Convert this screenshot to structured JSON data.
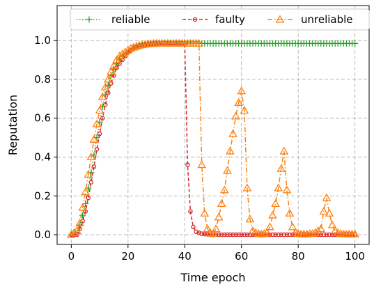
{
  "chart_data": {
    "type": "line",
    "xlabel": "Time epoch",
    "ylabel": "Reputation",
    "xlim": [
      -5,
      105
    ],
    "ylim": [
      -0.05,
      1.18
    ],
    "xticks": [
      0,
      20,
      40,
      60,
      80,
      100
    ],
    "yticks": [
      0.0,
      0.2,
      0.4,
      0.6,
      0.8,
      1.0
    ],
    "xtick_labels": [
      "0",
      "20",
      "40",
      "60",
      "80",
      "100"
    ],
    "ytick_labels": [
      "0.0",
      "0.2",
      "0.4",
      "0.6",
      "0.8",
      "1.0"
    ],
    "grid": true,
    "legend_position": "top",
    "series": [
      {
        "name": "reliable",
        "color": "#2ca02c",
        "linestyle": "dotted",
        "marker": "plus",
        "x": [
          0,
          1,
          2,
          3,
          4,
          5,
          6,
          7,
          8,
          9,
          10,
          11,
          12,
          13,
          14,
          15,
          16,
          17,
          18,
          19,
          20,
          21,
          22,
          23,
          24,
          25,
          26,
          27,
          28,
          29,
          30,
          31,
          32,
          33,
          34,
          35,
          36,
          37,
          38,
          39,
          40,
          41,
          42,
          43,
          44,
          45,
          46,
          47,
          48,
          49,
          50,
          51,
          52,
          53,
          54,
          55,
          56,
          57,
          58,
          59,
          60,
          61,
          62,
          63,
          64,
          65,
          66,
          67,
          68,
          69,
          70,
          71,
          72,
          73,
          74,
          75,
          76,
          77,
          78,
          79,
          80,
          81,
          82,
          83,
          84,
          85,
          86,
          87,
          88,
          89,
          90,
          91,
          92,
          93,
          94,
          95,
          96,
          97,
          98,
          99,
          100
        ],
        "y": [
          0.0,
          0.01,
          0.01,
          0.05,
          0.1,
          0.16,
          0.24,
          0.32,
          0.41,
          0.5,
          0.58,
          0.66,
          0.72,
          0.77,
          0.82,
          0.85,
          0.88,
          0.9,
          0.92,
          0.93,
          0.94,
          0.95,
          0.96,
          0.965,
          0.97,
          0.975,
          0.977,
          0.98,
          0.982,
          0.983,
          0.984,
          0.985,
          0.985,
          0.985,
          0.985,
          0.985,
          0.985,
          0.985,
          0.985,
          0.985,
          0.985,
          0.985,
          0.985,
          0.985,
          0.985,
          0.985,
          0.985,
          0.985,
          0.985,
          0.985,
          0.985,
          0.985,
          0.985,
          0.985,
          0.985,
          0.985,
          0.985,
          0.985,
          0.985,
          0.985,
          0.985,
          0.985,
          0.985,
          0.985,
          0.985,
          0.985,
          0.985,
          0.985,
          0.985,
          0.985,
          0.985,
          0.985,
          0.985,
          0.985,
          0.985,
          0.985,
          0.985,
          0.985,
          0.985,
          0.985,
          0.985,
          0.985,
          0.985,
          0.985,
          0.985,
          0.985,
          0.985,
          0.985,
          0.985,
          0.985,
          0.985,
          0.985,
          0.985,
          0.985,
          0.985,
          0.985,
          0.985,
          0.985,
          0.985,
          0.985,
          0.985
        ]
      },
      {
        "name": "faulty",
        "color": "#d62728",
        "linestyle": "dashed",
        "marker": "circle",
        "x": [
          0,
          1,
          2,
          3,
          4,
          5,
          6,
          7,
          8,
          9,
          10,
          11,
          12,
          13,
          14,
          15,
          16,
          17,
          18,
          19,
          20,
          21,
          22,
          23,
          24,
          25,
          26,
          27,
          28,
          29,
          30,
          31,
          32,
          33,
          34,
          35,
          36,
          37,
          38,
          39,
          40,
          41,
          42,
          43,
          44,
          45,
          46,
          47,
          48,
          49,
          50,
          51,
          52,
          53,
          54,
          55,
          56,
          57,
          58,
          59,
          60,
          61,
          62,
          63,
          64,
          65,
          66,
          67,
          68,
          69,
          70,
          71,
          72,
          73,
          74,
          75,
          76,
          77,
          78,
          79,
          80,
          81,
          82,
          83,
          84,
          85,
          86,
          87,
          88,
          89,
          90,
          91,
          92,
          93,
          94,
          95,
          96,
          97,
          98,
          99,
          100
        ],
        "y": [
          0.0,
          0.0,
          0.0,
          0.03,
          0.07,
          0.12,
          0.19,
          0.27,
          0.35,
          0.44,
          0.52,
          0.6,
          0.67,
          0.73,
          0.78,
          0.82,
          0.86,
          0.88,
          0.9,
          0.92,
          0.94,
          0.95,
          0.96,
          0.965,
          0.97,
          0.975,
          0.977,
          0.98,
          0.982,
          0.983,
          0.984,
          0.985,
          0.985,
          0.985,
          0.985,
          0.985,
          0.985,
          0.985,
          0.985,
          0.985,
          0.985,
          0.36,
          0.12,
          0.04,
          0.015,
          0.01,
          0.005,
          0.003,
          0.002,
          0.0,
          0.0,
          0.0,
          0.0,
          0.0,
          0.0,
          0.0,
          0.0,
          0.0,
          0.0,
          0.0,
          0.0,
          0.0,
          0.0,
          0.0,
          0.0,
          0.0,
          0.0,
          0.0,
          0.0,
          0.0,
          0.0,
          0.0,
          0.0,
          0.0,
          0.0,
          0.0,
          0.0,
          0.0,
          0.0,
          0.0,
          0.0,
          0.0,
          0.0,
          0.0,
          0.0,
          0.0,
          0.0,
          0.0,
          0.0,
          0.0,
          0.0,
          0.0,
          0.0,
          0.0,
          0.0,
          0.0,
          0.0,
          0.0,
          0.0,
          0.0,
          0.0
        ]
      },
      {
        "name": "unreliable",
        "color": "#ff7f0e",
        "linestyle": "dashdot",
        "marker": "triangle",
        "x": [
          0,
          1,
          2,
          3,
          4,
          5,
          6,
          7,
          8,
          9,
          10,
          11,
          12,
          13,
          14,
          15,
          16,
          17,
          18,
          19,
          20,
          21,
          22,
          23,
          24,
          25,
          26,
          27,
          28,
          29,
          30,
          31,
          32,
          33,
          34,
          35,
          36,
          37,
          38,
          39,
          40,
          41,
          42,
          43,
          44,
          45,
          46,
          47,
          48,
          49,
          50,
          51,
          52,
          53,
          54,
          55,
          56,
          57,
          58,
          59,
          60,
          61,
          62,
          63,
          64,
          65,
          66,
          67,
          68,
          69,
          70,
          71,
          72,
          73,
          74,
          75,
          76,
          77,
          78,
          79,
          80,
          81,
          82,
          83,
          84,
          85,
          86,
          87,
          88,
          89,
          90,
          91,
          92,
          93,
          94,
          95,
          96,
          97,
          98,
          99,
          100
        ],
        "y": [
          0.0,
          0.01,
          0.02,
          0.06,
          0.14,
          0.22,
          0.31,
          0.4,
          0.49,
          0.57,
          0.64,
          0.71,
          0.76,
          0.8,
          0.84,
          0.87,
          0.9,
          0.92,
          0.93,
          0.94,
          0.95,
          0.96,
          0.965,
          0.97,
          0.975,
          0.977,
          0.98,
          0.982,
          0.983,
          0.984,
          0.985,
          0.985,
          0.985,
          0.985,
          0.985,
          0.985,
          0.985,
          0.985,
          0.985,
          0.985,
          0.985,
          0.985,
          0.985,
          0.985,
          0.985,
          0.985,
          0.36,
          0.11,
          0.03,
          0.01,
          0.005,
          0.03,
          0.09,
          0.16,
          0.23,
          0.33,
          0.43,
          0.52,
          0.61,
          0.68,
          0.74,
          0.64,
          0.24,
          0.08,
          0.02,
          0.01,
          0.005,
          0.003,
          0.005,
          0.01,
          0.04,
          0.1,
          0.16,
          0.24,
          0.34,
          0.43,
          0.23,
          0.11,
          0.04,
          0.01,
          0.005,
          0.003,
          0.003,
          0.003,
          0.005,
          0.005,
          0.01,
          0.02,
          0.03,
          0.12,
          0.19,
          0.11,
          0.05,
          0.02,
          0.01,
          0.005,
          0.003,
          0.003,
          0.003,
          0.003,
          0.003
        ]
      }
    ]
  }
}
